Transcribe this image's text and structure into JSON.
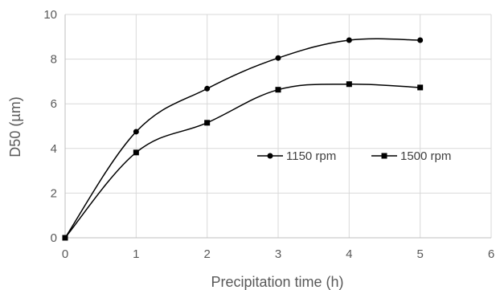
{
  "chart_data": {
    "type": "line",
    "title": "",
    "xlabel": "Precipitation time (h)",
    "ylabel": "D50 (µm)",
    "xlim": [
      0,
      6
    ],
    "ylim": [
      0,
      10
    ],
    "x_ticks": [
      "0",
      "1",
      "2",
      "3",
      "4",
      "5",
      "6"
    ],
    "y_ticks": [
      "0",
      "2",
      "4",
      "6",
      "8",
      "10"
    ],
    "grid": true,
    "legend_position": "center-right",
    "line_color": "#000000",
    "grid_color": "#d9d9d9",
    "series": [
      {
        "name": "1150 rpm",
        "marker": "circle",
        "x": [
          0,
          1,
          2,
          3,
          4,
          5
        ],
        "y": [
          0,
          4.75,
          6.68,
          8.05,
          8.85,
          8.85
        ]
      },
      {
        "name": "1500 rpm",
        "marker": "square",
        "x": [
          0,
          1,
          2,
          3,
          4,
          5
        ],
        "y": [
          0,
          3.82,
          5.15,
          6.63,
          6.88,
          6.73
        ]
      }
    ]
  }
}
